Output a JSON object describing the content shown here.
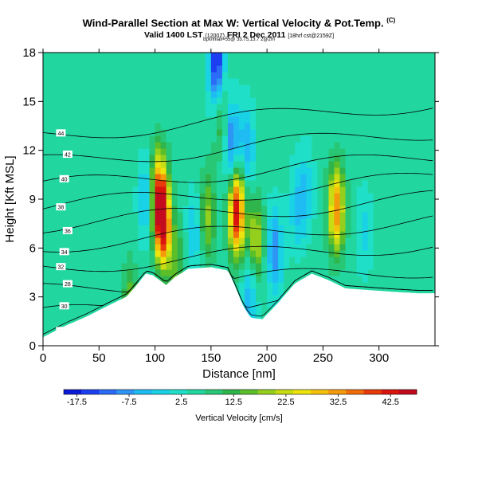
{
  "header": {
    "title": "Wind-Parallel Section at Max W: Vertical Velocity & Pot.Temp.",
    "title_mark": "(C)",
    "valid_main": "Valid 1400 LST",
    "valid_paren": "(1200Z)",
    "valid_date": "FRI 2 Dec 2011",
    "valid_tail": "[18hrf cst@2159Z]",
    "subtitle": "bpx/lmax=55@ 33.75,13.7 2@2m"
  },
  "colorbar": {
    "label": "Vertical Velocity [cm/s]",
    "ticks": [
      "-17.5",
      "-7.5",
      "2.5",
      "12.5",
      "22.5",
      "32.5",
      "42.5"
    ],
    "colors": [
      "#0b1ad6",
      "#1c3ff0",
      "#2a6cf7",
      "#2f95f5",
      "#1ebcf2",
      "#19d2e6",
      "#1fdfc8",
      "#22d79f",
      "#28c775",
      "#2fb54c",
      "#5cbf2a",
      "#95cf1e",
      "#c8dc14",
      "#ede40e",
      "#f5c20b",
      "#f59a0a",
      "#f06d09",
      "#e83a0a",
      "#d9150e",
      "#c40a1e"
    ]
  },
  "chart_data": {
    "type": "heatmap",
    "xlabel": "Distance [nm]",
    "ylabel": "Height [Kft MSL]",
    "xlim": [
      0,
      350
    ],
    "ylim": [
      0,
      18
    ],
    "xticks": [
      "0",
      "50",
      "100",
      "150",
      "200",
      "250",
      "300"
    ],
    "yticks": [
      "0",
      "3",
      "6",
      "9",
      "12",
      "15",
      "18"
    ],
    "background_w": 5,
    "terrain_kft": [
      [
        0,
        0.5
      ],
      [
        20,
        1.2
      ],
      [
        40,
        1.8
      ],
      [
        60,
        2.5
      ],
      [
        75,
        3.0
      ],
      [
        85,
        3.8
      ],
      [
        92,
        4.4
      ],
      [
        98,
        4.3
      ],
      [
        110,
        3.7
      ],
      [
        118,
        4.2
      ],
      [
        130,
        4.7
      ],
      [
        150,
        4.8
      ],
      [
        165,
        4.6
      ],
      [
        172,
        3.5
      ],
      [
        178,
        2.5
      ],
      [
        185,
        1.7
      ],
      [
        196,
        1.6
      ],
      [
        210,
        2.6
      ],
      [
        225,
        3.8
      ],
      [
        240,
        4.4
      ],
      [
        255,
        4.0
      ],
      [
        270,
        3.5
      ],
      [
        290,
        3.4
      ],
      [
        310,
        3.3
      ],
      [
        335,
        3.2
      ],
      [
        350,
        3.2
      ]
    ],
    "vertical_velocity_cells": [
      {
        "x": 107,
        "z": 7.5,
        "w": 46
      },
      {
        "x": 103,
        "z": 9.6,
        "w": 30
      },
      {
        "x": 119,
        "z": 5.0,
        "w": 15
      },
      {
        "x": 147,
        "z": 8.0,
        "w": 18
      },
      {
        "x": 173,
        "z": 8.2,
        "w": 45
      },
      {
        "x": 190,
        "z": 6.5,
        "w": 22
      },
      {
        "x": 262,
        "z": 8.4,
        "w": 34
      },
      {
        "x": 78,
        "z": 2.2,
        "w": 18
      },
      {
        "x": 160,
        "z": 14.0,
        "w": 16
      },
      {
        "x": 92,
        "z": 9.0,
        "w": -5
      },
      {
        "x": 135,
        "z": 7.0,
        "w": -3
      },
      {
        "x": 207,
        "z": 5.8,
        "w": -9
      },
      {
        "x": 185,
        "z": 3.0,
        "w": -6
      },
      {
        "x": 227,
        "z": 8.5,
        "w": -3
      },
      {
        "x": 287,
        "z": 7.0,
        "w": -1
      },
      {
        "x": 155,
        "z": 17.3,
        "w": -18
      },
      {
        "x": 168,
        "z": 12.6,
        "w": -12
      },
      {
        "x": 182,
        "z": 12.2,
        "w": -6
      },
      {
        "x": 235,
        "z": 9.6,
        "w": -2
      }
    ],
    "theta_contours": [
      {
        "label": "34",
        "base": 0.0
      },
      {
        "label": "30",
        "base": 1.4
      },
      {
        "label": "28",
        "base": 2.8
      },
      {
        "label": "32",
        "base": 4.2
      },
      {
        "label": "34",
        "base": 5.5
      },
      {
        "label": "36",
        "base": 6.7
      },
      {
        "label": "38",
        "base": 7.8
      },
      {
        "label": "40",
        "base": 9.0
      },
      {
        "label": "42",
        "base": 10.4
      },
      {
        "label": "44",
        "base": 12.0
      }
    ]
  }
}
